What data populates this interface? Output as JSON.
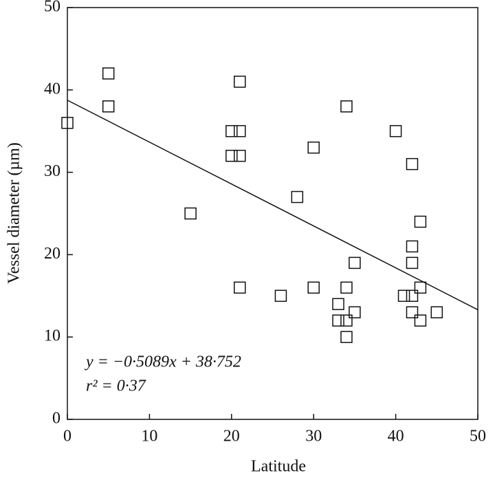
{
  "chart_data": {
    "type": "scatter",
    "xlabel": "Latitude",
    "ylabel": "Vessel diameter (µm)",
    "annotations": [
      "y = −0·5089x + 38·752",
      "r² = 0·37"
    ],
    "x": [
      0,
      5,
      5,
      15,
      20,
      21,
      20,
      21,
      21,
      21,
      26,
      28,
      30,
      30,
      33,
      33,
      34,
      34,
      34,
      34,
      35,
      35,
      40,
      42,
      42,
      42,
      42,
      41,
      42,
      43,
      43,
      43,
      45
    ],
    "values": [
      36,
      42,
      38,
      25,
      35,
      35,
      32,
      32,
      41,
      16,
      15,
      27,
      33,
      16,
      14,
      12,
      12,
      10,
      16,
      38,
      19,
      13,
      35,
      31,
      21,
      19,
      15,
      15,
      13,
      16,
      24,
      12,
      13
    ],
    "color": "#111111",
    "fit": {
      "slope": -0.5089,
      "intercept": 38.752
    },
    "xlim": [
      0,
      50
    ],
    "ylim": [
      0,
      50
    ],
    "xticks": [
      0,
      10,
      20,
      30,
      40,
      50
    ],
    "yticks": [
      0,
      10,
      20,
      30,
      40,
      50
    ],
    "grid": false
  }
}
